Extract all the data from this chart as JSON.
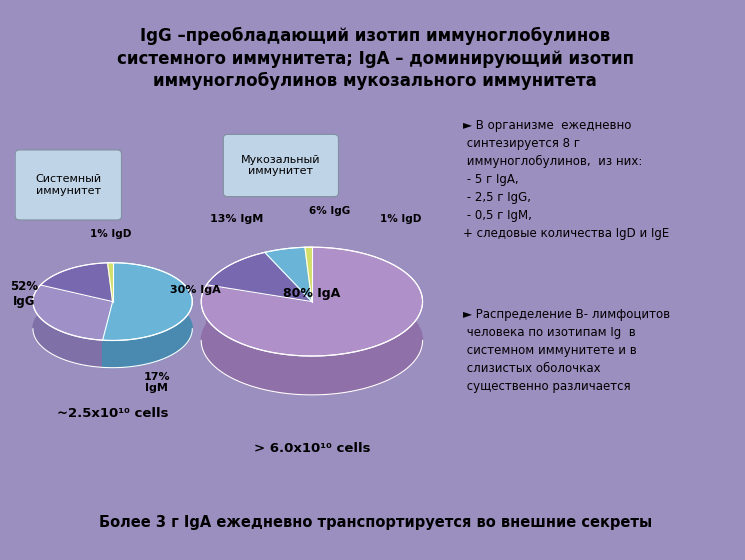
{
  "title": "IgG –преобладающий изотип иммуноглобулинов\nсистемного иммунитета; IgA – доминирующий изотип\nиммуноглобулинов мукозального иммунитета",
  "bg_color": "#9b8fc0",
  "content_bg": "#cdc5e5",
  "right_bg": "#cdd5e8",
  "bottom_bg": "#ffffff",
  "bottom_text": "Более 3 г IgA ежедневно транспортируется во внешние секреты",
  "pie1_values": [
    52,
    30,
    17,
    1
  ],
  "pie1_labels": [
    "52%\nIgG",
    "30% IgA",
    "17%\nIgM",
    "1% IgD"
  ],
  "pie1_colors": [
    "#6ab4d8",
    "#a090c8",
    "#7868b0",
    "#d4df6a"
  ],
  "pie1_colors_dark": [
    "#4a8ab0",
    "#8070a8",
    "#584888",
    "#b4bf4a"
  ],
  "pie1_title": "Системный\nиммунитет",
  "pie1_subtitle": "~2.5x10¹⁰ cells",
  "pie2_values": [
    80,
    13,
    6,
    1
  ],
  "pie2_labels": [
    "80% IgA",
    "13% IgM",
    "6% IgG",
    "1% IgD"
  ],
  "pie2_colors": [
    "#b090c8",
    "#7868b0",
    "#6ab4d8",
    "#d4df6a"
  ],
  "pie2_colors_dark": [
    "#9070a8",
    "#584888",
    "#4a8ab0",
    "#b4bf4a"
  ],
  "pie2_title": "Мукозальный\nиммунитет",
  "pie2_subtitle": "> 6.0x10¹⁰ cells",
  "right_bullet1": "►",
  "right_text1": " В организме  ежедневно\n синтезируется 8 г\n иммуноглобулинов,  из них:\n - 5 г IgA,\n - 2,5 г IgG,\n - 0,5 г IgM,\n+ следовые количества IgD и IgE",
  "right_bullet2": "►",
  "right_text2": " Распределение В- лимфоцитов\n человека по изотипам Ig  в\n системном иммунитете и в\n слизистых оболочках\n существенно различается"
}
